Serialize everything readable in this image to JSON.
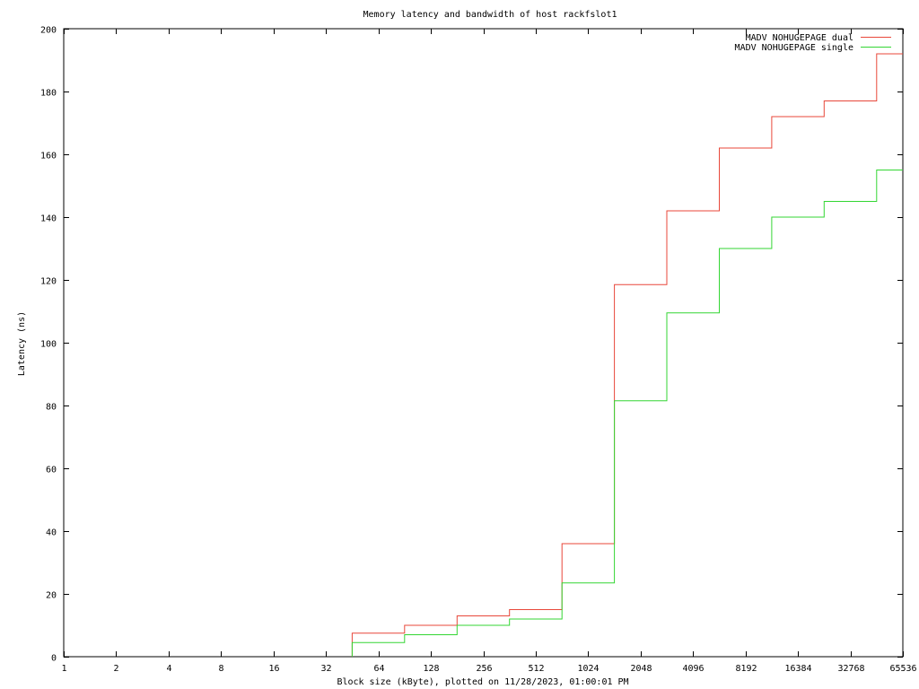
{
  "chart_data": {
    "type": "line",
    "title": "Memory latency and bandwidth of host rackfslot1",
    "xlabel": "Block size (kByte), plotted on 11/28/2023, 01:00:01 PM",
    "ylabel": "Latency (ns)",
    "x_scale": "log2",
    "xlim": [
      1,
      65536
    ],
    "ylim": [
      0,
      200
    ],
    "x_ticks": [
      1,
      2,
      4,
      8,
      16,
      32,
      64,
      128,
      256,
      512,
      1024,
      2048,
      4096,
      8192,
      16384,
      32768,
      65536
    ],
    "x_tick_labels": [
      "1",
      "2",
      "4",
      "8",
      "16",
      "32",
      "64",
      "128",
      "256",
      "512",
      "1024",
      "2048",
      "4096",
      "8192",
      "16384",
      "32768",
      "65536"
    ],
    "y_ticks": [
      0,
      20,
      40,
      60,
      80,
      100,
      120,
      140,
      160,
      180,
      200
    ],
    "y_tick_labels": [
      "0",
      "20",
      "40",
      "60",
      "80",
      "100",
      "120",
      "140",
      "160",
      "180",
      "200"
    ],
    "grid": false,
    "legend_position": "top-right",
    "step_style": "histeps",
    "series": [
      {
        "name": "MADV NOHUGEPAGE dual",
        "color": "#e8473a",
        "x": [
          64,
          128,
          256,
          512,
          1024,
          2048,
          4096,
          8192,
          16384,
          32768,
          65536
        ],
        "y": [
          7.5,
          10,
          13,
          15,
          36,
          118.5,
          142,
          162,
          172,
          177,
          192
        ]
      },
      {
        "name": "MADV NOHUGEPAGE single",
        "color": "#33d633",
        "x": [
          64,
          128,
          256,
          512,
          1024,
          2048,
          4096,
          8192,
          16384,
          32768,
          65536
        ],
        "y": [
          4.5,
          7,
          10,
          12,
          23.5,
          81.5,
          109.5,
          130,
          140,
          145,
          155
        ]
      }
    ]
  }
}
